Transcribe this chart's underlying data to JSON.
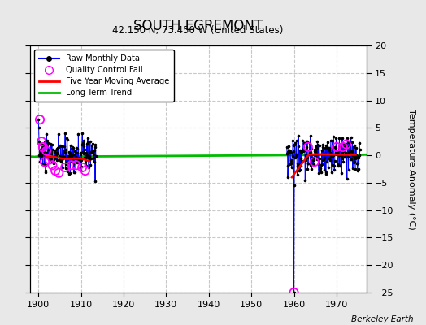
{
  "title": "SOUTH EGREMONT",
  "subtitle": "42.150 N, 73.450 W (United States)",
  "ylabel": "Temperature Anomaly (°C)",
  "credit": "Berkeley Earth",
  "xlim": [
    1898,
    1977
  ],
  "ylim": [
    -25,
    20
  ],
  "xticks": [
    1900,
    1910,
    1920,
    1930,
    1940,
    1950,
    1960,
    1970
  ],
  "yticks": [
    -25,
    -20,
    -15,
    -10,
    -5,
    0,
    5,
    10,
    15,
    20
  ],
  "fig_bg_color": "#e8e8e8",
  "plot_bg_color": "#ffffff",
  "grid_color": "#c8c8c8",
  "raw_color": "#0000ff",
  "raw_dot_color": "#000000",
  "qc_fail_color": "#ff00ff",
  "moving_avg_color": "#ff0000",
  "trend_color": "#00bb00",
  "trend_x1": 1898,
  "trend_y1": -0.28,
  "trend_x2": 1977,
  "trend_y2": 0.12,
  "cluster1_x_start": 1900.0,
  "cluster1_x_end": 1913.5,
  "cluster2_x_start": 1958.3,
  "cluster2_x_end": 1975.5,
  "qc1_x": [
    1900.35,
    1900.75,
    1901.1,
    1901.5,
    1901.9,
    1902.6,
    1903.3,
    1904.0,
    1904.8,
    1906.3,
    1907.8,
    1908.9,
    1910.3,
    1911.0
  ],
  "qc1_y": [
    6.5,
    2.5,
    1.5,
    -1.2,
    0.8,
    -0.8,
    -1.8,
    -2.8,
    -3.2,
    -2.2,
    -1.8,
    -1.8,
    -2.2,
    -2.8
  ],
  "qc2_x": [
    1960.0,
    1963.3,
    1964.8,
    1970.0,
    1971.5,
    1972.3
  ],
  "qc2_y": [
    -25.0,
    1.5,
    -1.2,
    1.5,
    1.5,
    2.0
  ],
  "ma1_x_start": 1901.5,
  "ma1_x_end": 1912.0,
  "ma2_x_start": 1959.5,
  "ma2_x_end": 1974.5
}
